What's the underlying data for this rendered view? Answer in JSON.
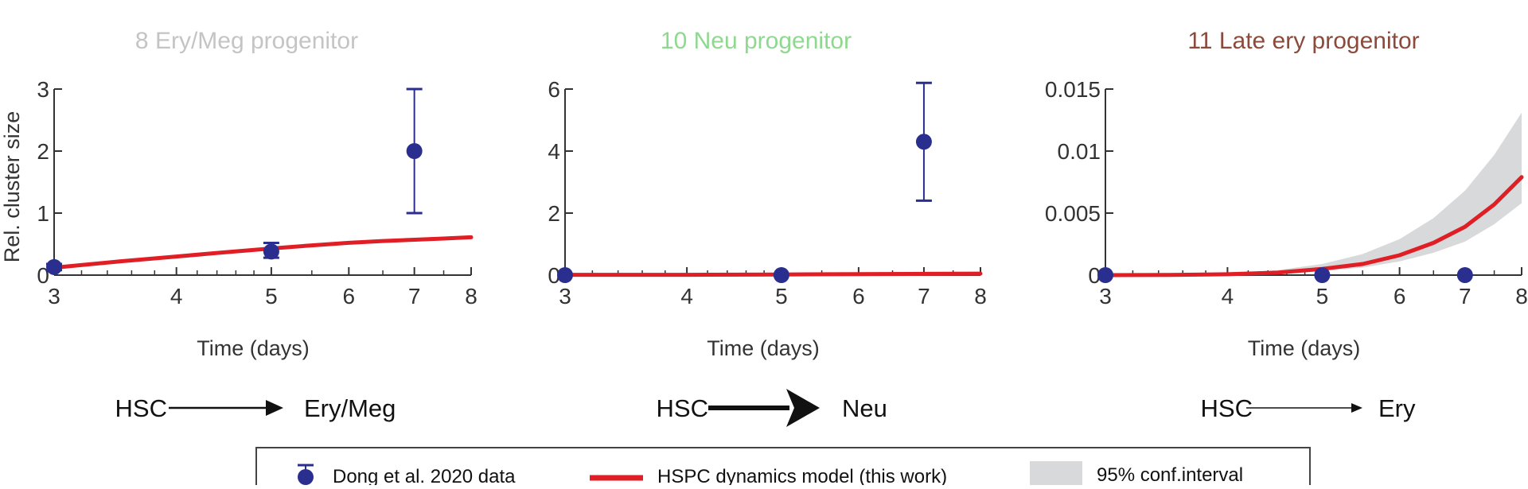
{
  "colors": {
    "data": "#2a2f8f",
    "model": "#e01e25",
    "ci": "#d8d9da",
    "axis": "#333333",
    "arrow": "#111111"
  },
  "chart_data": [
    {
      "type": "line",
      "title": "8 Ery/Meg progenitor",
      "title_color": "#c4c4c4",
      "xlabel": "Time (days)",
      "ylabel": "Rel. cluster size",
      "x_scale": "log",
      "xlim": [
        3,
        8
      ],
      "ylim": [
        0,
        3
      ],
      "xticks": [
        3,
        4,
        5,
        6,
        7,
        8
      ],
      "yticks": [
        {
          "value": 0,
          "label": "0"
        },
        {
          "value": 1,
          "label": "1"
        },
        {
          "value": 2,
          "label": "2"
        },
        {
          "value": 3,
          "label": "3"
        }
      ],
      "series": [
        {
          "name": "Dong et al. 2020 data",
          "kind": "scatter-errorbar",
          "x": [
            3,
            5,
            7
          ],
          "y": [
            0.13,
            0.38,
            2.0
          ],
          "y_low": [
            0.08,
            0.28,
            1.0
          ],
          "y_high": [
            0.18,
            0.52,
            3.0
          ]
        },
        {
          "name": "HSPC dynamics model (this work)",
          "kind": "line",
          "x": [
            3,
            3.5,
            4,
            4.5,
            5,
            5.5,
            6,
            6.5,
            7,
            7.5,
            8
          ],
          "y": [
            0.12,
            0.22,
            0.3,
            0.37,
            0.43,
            0.48,
            0.52,
            0.55,
            0.57,
            0.59,
            0.61
          ],
          "ci_low": [
            0.11,
            0.2,
            0.28,
            0.35,
            0.41,
            0.46,
            0.5,
            0.53,
            0.55,
            0.57,
            0.58
          ],
          "ci_high": [
            0.13,
            0.24,
            0.32,
            0.39,
            0.45,
            0.5,
            0.54,
            0.57,
            0.6,
            0.62,
            0.64
          ]
        }
      ],
      "arrow": {
        "from": "HSC",
        "to": "Ery/Meg",
        "weight": "medium"
      }
    },
    {
      "type": "line",
      "title": "10 Neu progenitor",
      "title_color": "#8fd88f",
      "xlabel": "Time (days)",
      "ylabel": "",
      "x_scale": "log",
      "xlim": [
        3,
        8
      ],
      "ylim": [
        0,
        6
      ],
      "xticks": [
        3,
        4,
        5,
        6,
        7,
        8
      ],
      "yticks": [
        {
          "value": 0,
          "label": "0"
        },
        {
          "value": 2,
          "label": "2"
        },
        {
          "value": 4,
          "label": "4"
        },
        {
          "value": 6,
          "label": "6"
        }
      ],
      "series": [
        {
          "name": "Dong et al. 2020 data",
          "kind": "scatter-errorbar",
          "x": [
            3,
            5,
            7
          ],
          "y": [
            0.0,
            0.0,
            4.3
          ],
          "y_low": [
            0.0,
            0.0,
            2.4
          ],
          "y_high": [
            0.0,
            0.0,
            6.2
          ]
        },
        {
          "name": "HSPC dynamics model (this work)",
          "kind": "line",
          "x": [
            3,
            4,
            5,
            6,
            7,
            8
          ],
          "y": [
            0.01,
            0.01,
            0.02,
            0.03,
            0.04,
            0.05
          ],
          "ci_low": [
            0.0,
            0.0,
            0.01,
            0.02,
            0.03,
            0.04
          ],
          "ci_high": [
            0.02,
            0.02,
            0.03,
            0.04,
            0.05,
            0.06
          ]
        }
      ],
      "arrow": {
        "from": "HSC",
        "to": "Neu",
        "weight": "heavy"
      }
    },
    {
      "type": "line",
      "title": "11 Late ery progenitor",
      "title_color": "#8b4a3c",
      "xlabel": "Time (days)",
      "ylabel": "",
      "x_scale": "log",
      "xlim": [
        3,
        8
      ],
      "ylim": [
        0,
        0.015
      ],
      "xticks": [
        3,
        4,
        5,
        6,
        7,
        8
      ],
      "yticks": [
        {
          "value": 0,
          "label": "0"
        },
        {
          "value": 0.005,
          "label": "0.005"
        },
        {
          "value": 0.01,
          "label": "0.01"
        },
        {
          "value": 0.015,
          "label": "0.015"
        }
      ],
      "series": [
        {
          "name": "Dong et al. 2020 data",
          "kind": "scatter-errorbar",
          "x": [
            3,
            5,
            7
          ],
          "y": [
            0,
            0,
            0
          ],
          "y_low": [
            0,
            0,
            0
          ],
          "y_high": [
            0,
            0,
            0
          ]
        },
        {
          "name": "HSPC dynamics model (this work)",
          "kind": "line",
          "x": [
            3,
            3.5,
            4,
            4.5,
            5,
            5.5,
            6,
            6.5,
            7,
            7.5,
            8
          ],
          "y": [
            0.0,
            2e-05,
            7e-05,
            0.0002,
            0.0005,
            0.0009,
            0.0016,
            0.0026,
            0.0039,
            0.0057,
            0.0079
          ],
          "ci_low": [
            0.0,
            1e-05,
            5e-05,
            0.00014,
            0.00034,
            0.0006,
            0.0011,
            0.0018,
            0.0027,
            0.0041,
            0.0058
          ],
          "ci_high": [
            0.0,
            4e-05,
            0.00015,
            0.0004,
            0.0009,
            0.0017,
            0.0029,
            0.0046,
            0.0068,
            0.0097,
            0.0131
          ]
        }
      ],
      "arrow": {
        "from": "HSC",
        "to": "Ery",
        "weight": "light"
      }
    }
  ],
  "legend": {
    "data_label": "Dong et al. 2020 data",
    "model_label": "HSPC dynamics model (this work)",
    "ci_label": "95% conf.interval"
  }
}
